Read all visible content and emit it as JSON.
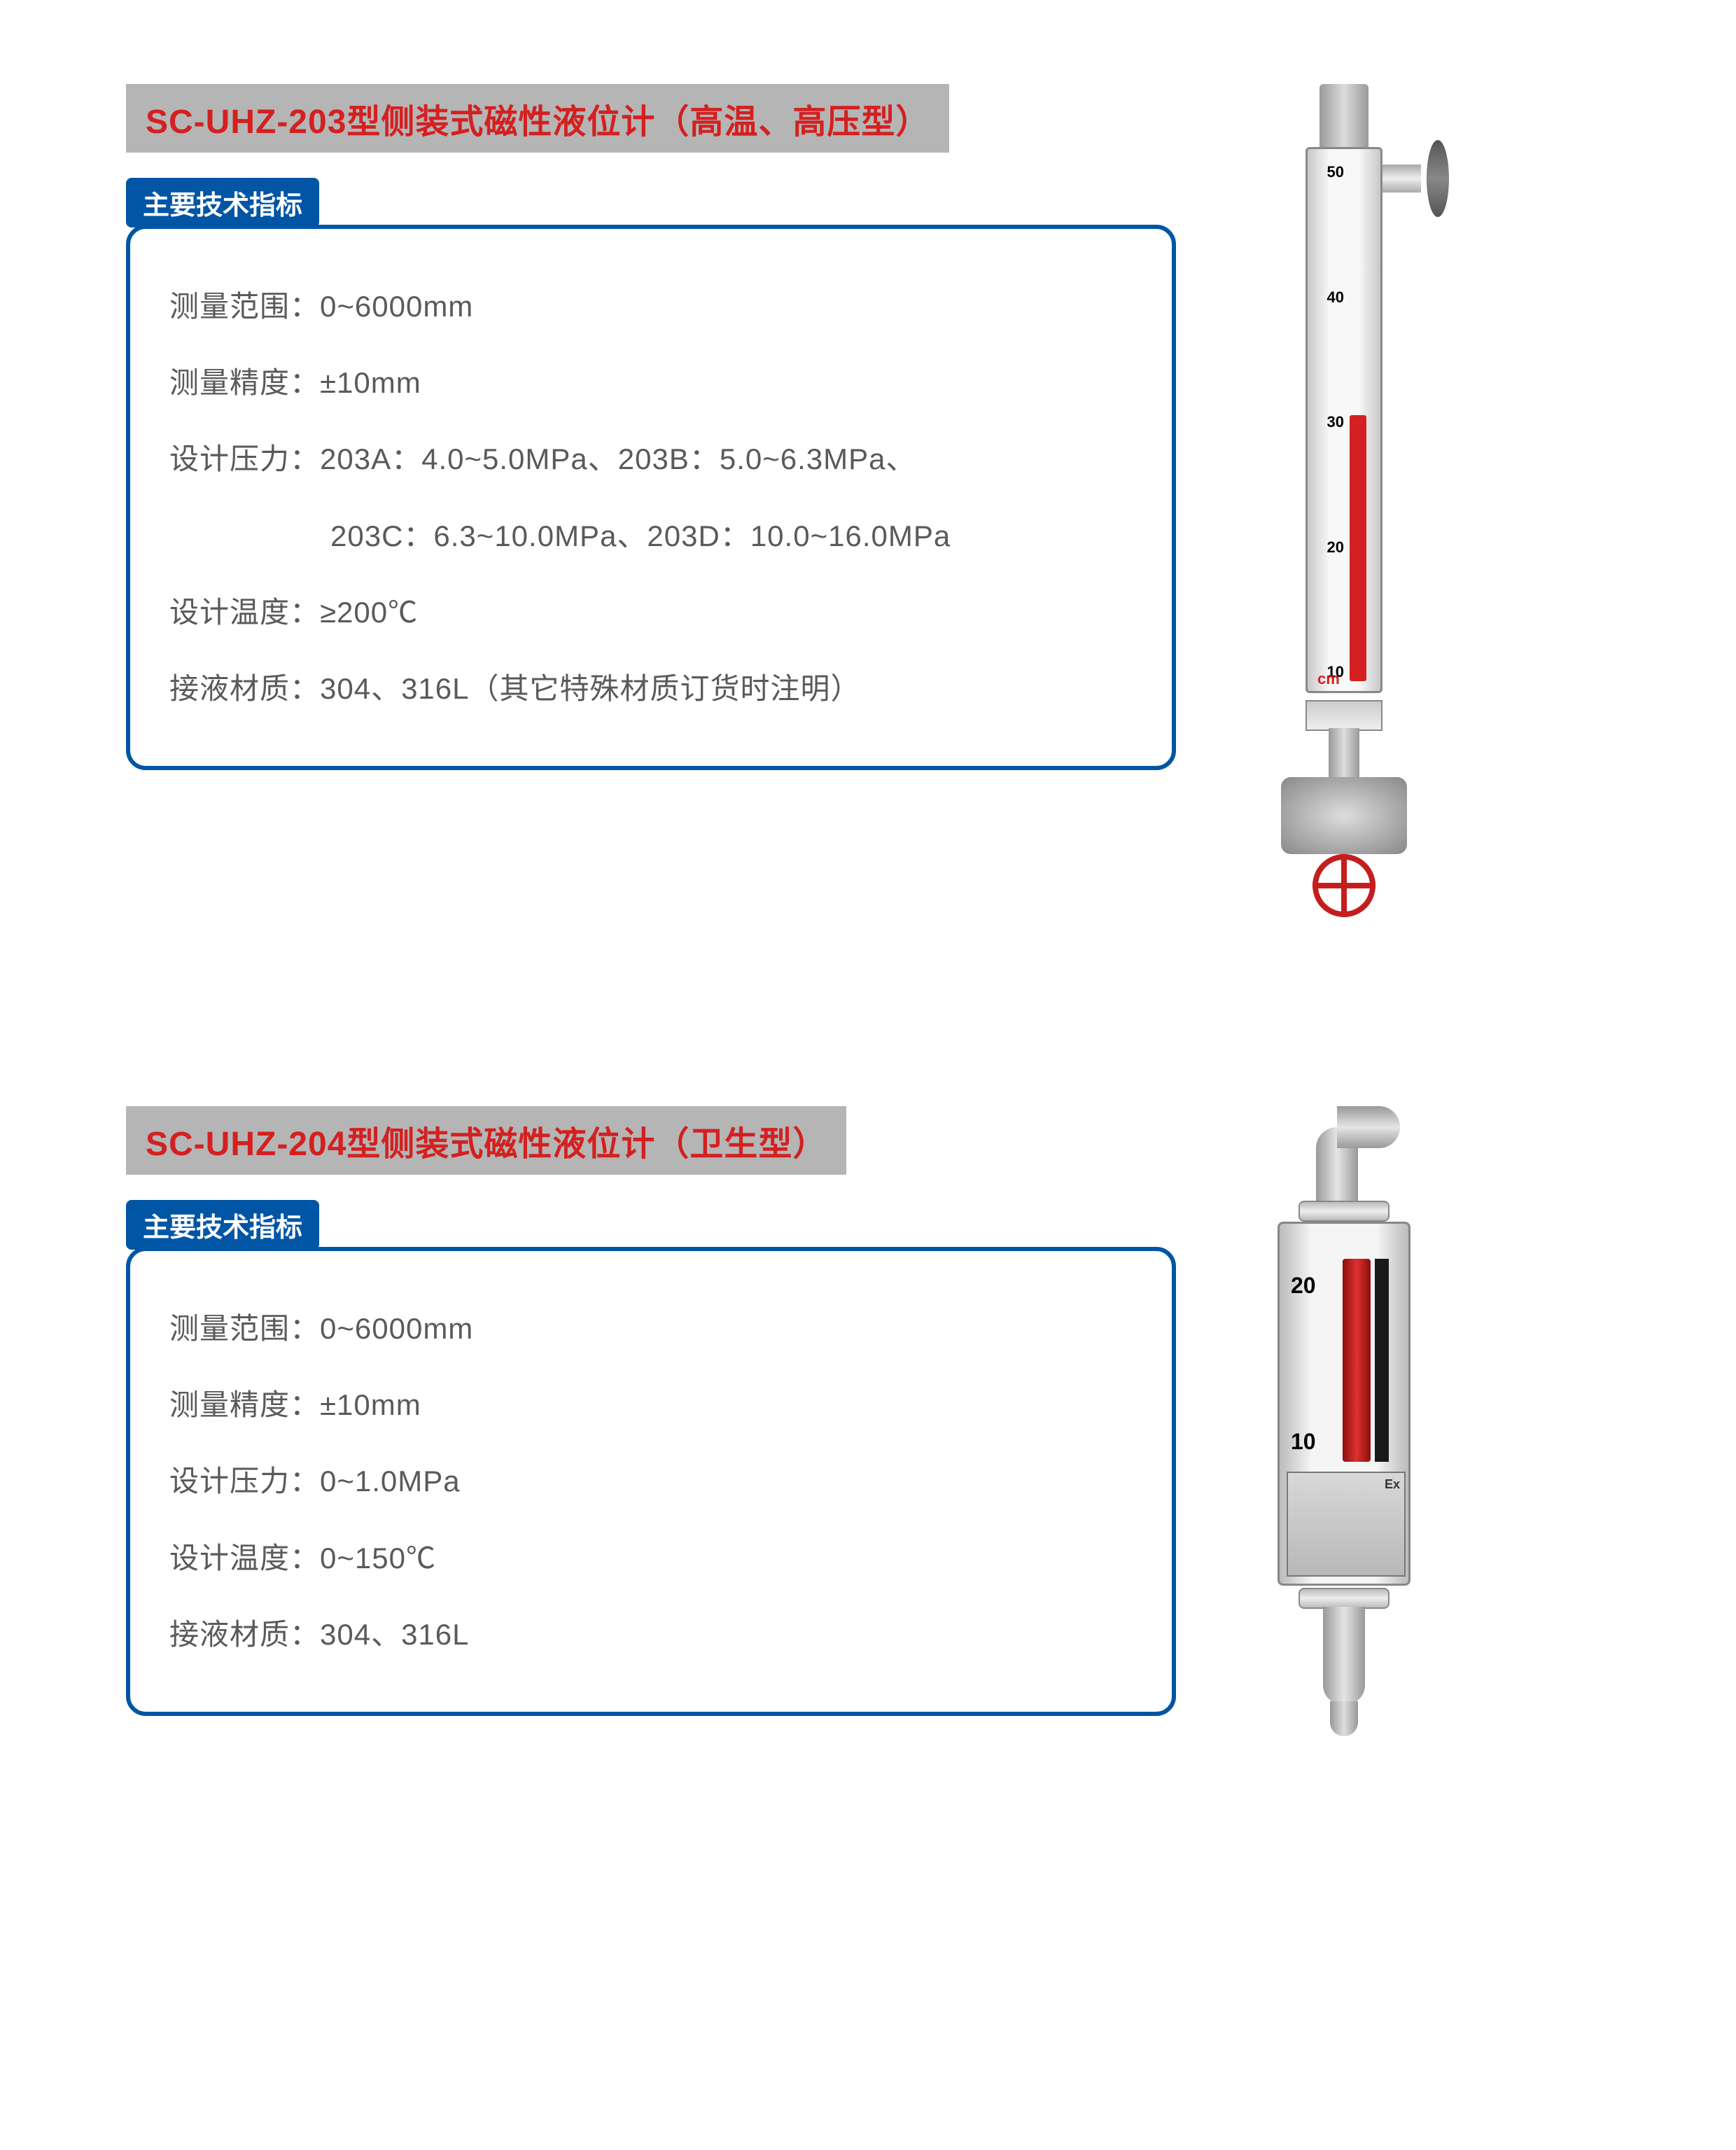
{
  "colors": {
    "title_bg": "#b5b5b5",
    "title_text": "#d42020",
    "subtitle_bg": "#0055a5",
    "subtitle_text": "#ffffff",
    "box_border": "#0055a5",
    "spec_text": "#5a5a5a",
    "valve_red": "#c41e1e",
    "indicator_red": "#d42020"
  },
  "product1": {
    "title": "SC-UHZ-203型侧装式磁性液位计（高温、高压型）",
    "subtitle": "主要技术指标",
    "specs": {
      "range": "测量范围：0~6000mm",
      "accuracy": "测量精度：±10mm",
      "pressure_line1": "设计压力：203A：4.0~5.0MPa、203B：5.0~6.3MPa、",
      "pressure_line2": "203C：6.3~10.0MPa、203D：10.0~16.0MPa",
      "temperature": "设计温度：≥200℃",
      "material": "接液材质：304、316L（其它特殊材质订货时注明）"
    },
    "gauge": {
      "scale_marks": [
        "50",
        "40",
        "30",
        "20",
        "10"
      ],
      "unit_label": "cm"
    }
  },
  "product2": {
    "title": "SC-UHZ-204型侧装式磁性液位计（卫生型）",
    "subtitle": "主要技术指标",
    "specs": {
      "range": "测量范围：0~6000mm",
      "accuracy": "测量精度：±10mm",
      "pressure": "设计压力：0~1.0MPa",
      "temperature": "设计温度：0~150℃",
      "material": "接液材质：304、316L"
    },
    "gauge": {
      "scale_marks": [
        "20",
        "10"
      ],
      "plate_label": "Ex"
    }
  }
}
